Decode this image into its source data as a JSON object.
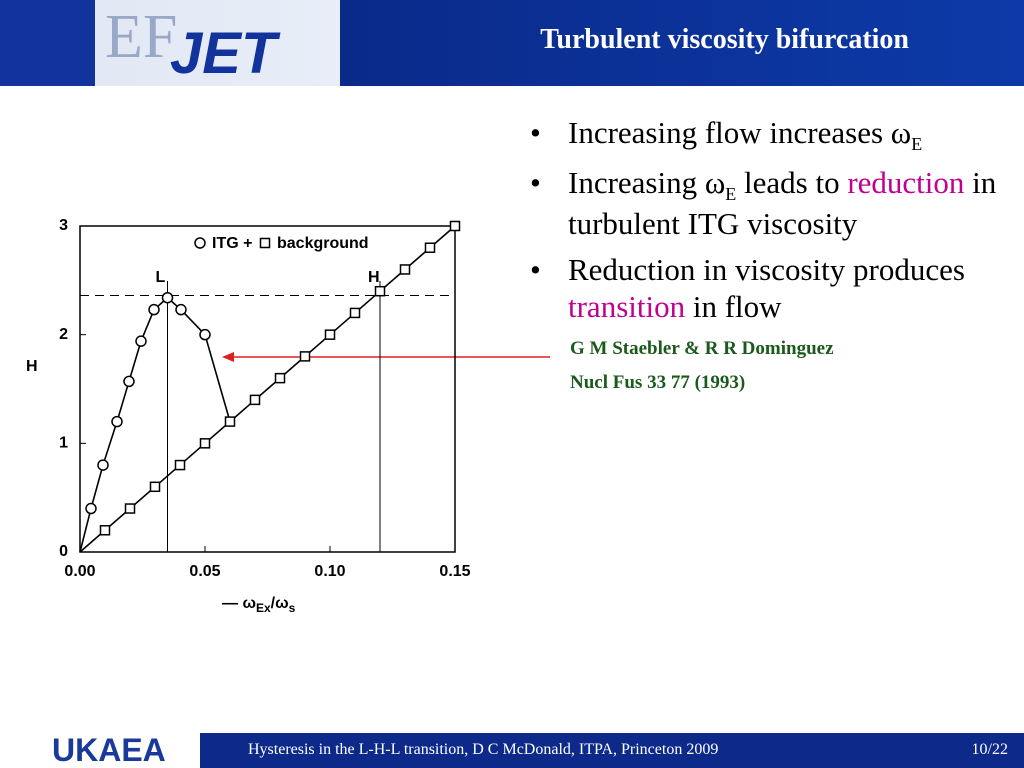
{
  "header": {
    "logo_left": "EF",
    "logo_right": "JET",
    "title": "Turbulent viscosity bifurcation"
  },
  "bullets": [
    [
      {
        "text": "Increasing flow increases ω"
      },
      {
        "text": "E",
        "sub": true
      }
    ],
    [
      {
        "text": "Increasing ω"
      },
      {
        "text": "E",
        "sub": true
      },
      {
        "text": " leads to "
      },
      {
        "text": "reduction",
        "color": "#c0008f"
      },
      {
        "text": " in turbulent ITG viscosity"
      }
    ],
    [
      {
        "text": "Reduction in viscosity produces "
      },
      {
        "text": "transition",
        "color": "#c0008f"
      },
      {
        "text": " in flow"
      }
    ]
  ],
  "reference": [
    "G M Staebler & R R Dominguez",
    "Nucl Fus 33 77 (1993)"
  ],
  "footer": {
    "logo": "UKAEA",
    "text": "Hysteresis in the L-H-L transition, D C McDonald, ITPA, Princeton 2009",
    "page": "10/22"
  },
  "chart_data": {
    "type": "line",
    "ylabel": "H",
    "xlabel": [
      {
        "text": "— ω"
      },
      {
        "text": "Ex",
        "sub": true
      },
      {
        "text": "/ω"
      },
      {
        "text": "s",
        "sub": true
      }
    ],
    "xlim": [
      0,
      0.15
    ],
    "ylim": [
      0,
      3
    ],
    "xticks": [
      {
        "value": 0,
        "label": "0.00"
      },
      {
        "value": 0.05,
        "label": "0.05"
      },
      {
        "value": 0.1,
        "label": "0.10"
      },
      {
        "value": 0.15,
        "label": "0.15"
      }
    ],
    "yticks": [
      0,
      1,
      2,
      3
    ],
    "hlines": [
      2.36
    ],
    "vlines": [
      {
        "x": 0.035,
        "label": "L"
      },
      {
        "x": 0.12,
        "label": "H"
      }
    ],
    "series": [
      {
        "name": "ITG +",
        "marker": "circle",
        "color": "#000000",
        "x": [
          0.0044,
          0.0092,
          0.0148,
          0.0196,
          0.0244,
          0.0296,
          0.035,
          0.0404,
          0.05
        ],
        "values": [
          0.4,
          0.8,
          1.2,
          1.57,
          1.94,
          2.23,
          2.34,
          2.23,
          2.0
        ]
      },
      {
        "name": "background",
        "marker": "square",
        "color": "#000000",
        "x": [
          0.01,
          0.02,
          0.03,
          0.04,
          0.05,
          0.06,
          0.07,
          0.08,
          0.09,
          0.1,
          0.11,
          0.12,
          0.13,
          0.14,
          0.15
        ],
        "values": [
          0.2,
          0.4,
          0.6,
          0.8,
          1.0,
          1.2,
          1.4,
          1.6,
          1.8,
          2.0,
          2.2,
          2.4,
          2.6,
          2.8,
          3.0
        ]
      }
    ]
  }
}
